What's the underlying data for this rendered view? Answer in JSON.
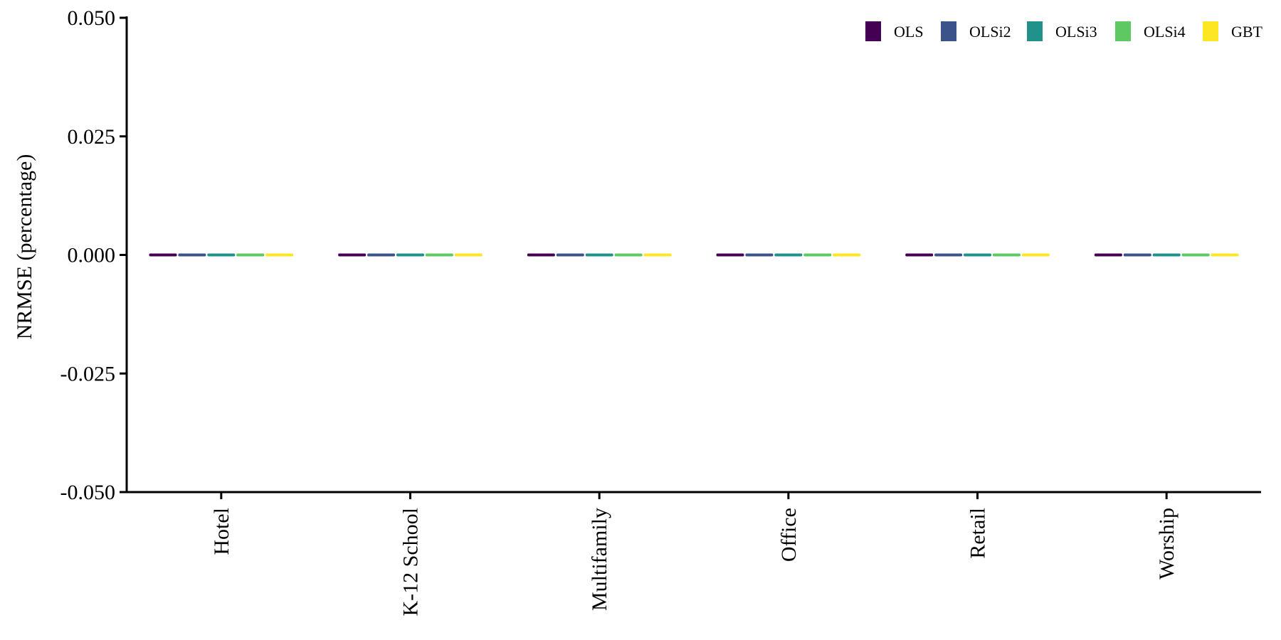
{
  "chart_data": {
    "type": "bar",
    "title": "",
    "xlabel": "",
    "ylabel": "NRMSE (percentage)",
    "ylim": [
      -0.05,
      0.05
    ],
    "yticks": [
      -0.05,
      -0.025,
      0,
      0.025,
      0.05
    ],
    "ytick_labels": [
      "-0.050",
      "-0.025",
      "0.000",
      "0.025",
      "0.050"
    ],
    "categories": [
      "Hotel",
      "K-12 School",
      "Multifamily",
      "Office",
      "Retail",
      "Worship"
    ],
    "series": [
      {
        "name": "OLS",
        "color": "#440154",
        "values": [
          0,
          0,
          0,
          0,
          0,
          0
        ]
      },
      {
        "name": "OLSi2",
        "color": "#3B528B",
        "values": [
          0,
          0,
          0,
          0,
          0,
          0
        ]
      },
      {
        "name": "OLSi3",
        "color": "#21918C",
        "values": [
          0,
          0,
          0,
          0,
          0,
          0
        ]
      },
      {
        "name": "OLSi4",
        "color": "#5EC962",
        "values": [
          0,
          0,
          0,
          0,
          0,
          0
        ]
      },
      {
        "name": "GBT",
        "color": "#FDE725",
        "values": [
          0,
          0,
          0,
          0,
          0,
          0
        ]
      }
    ],
    "legend_position": "top-right",
    "grid": false
  }
}
